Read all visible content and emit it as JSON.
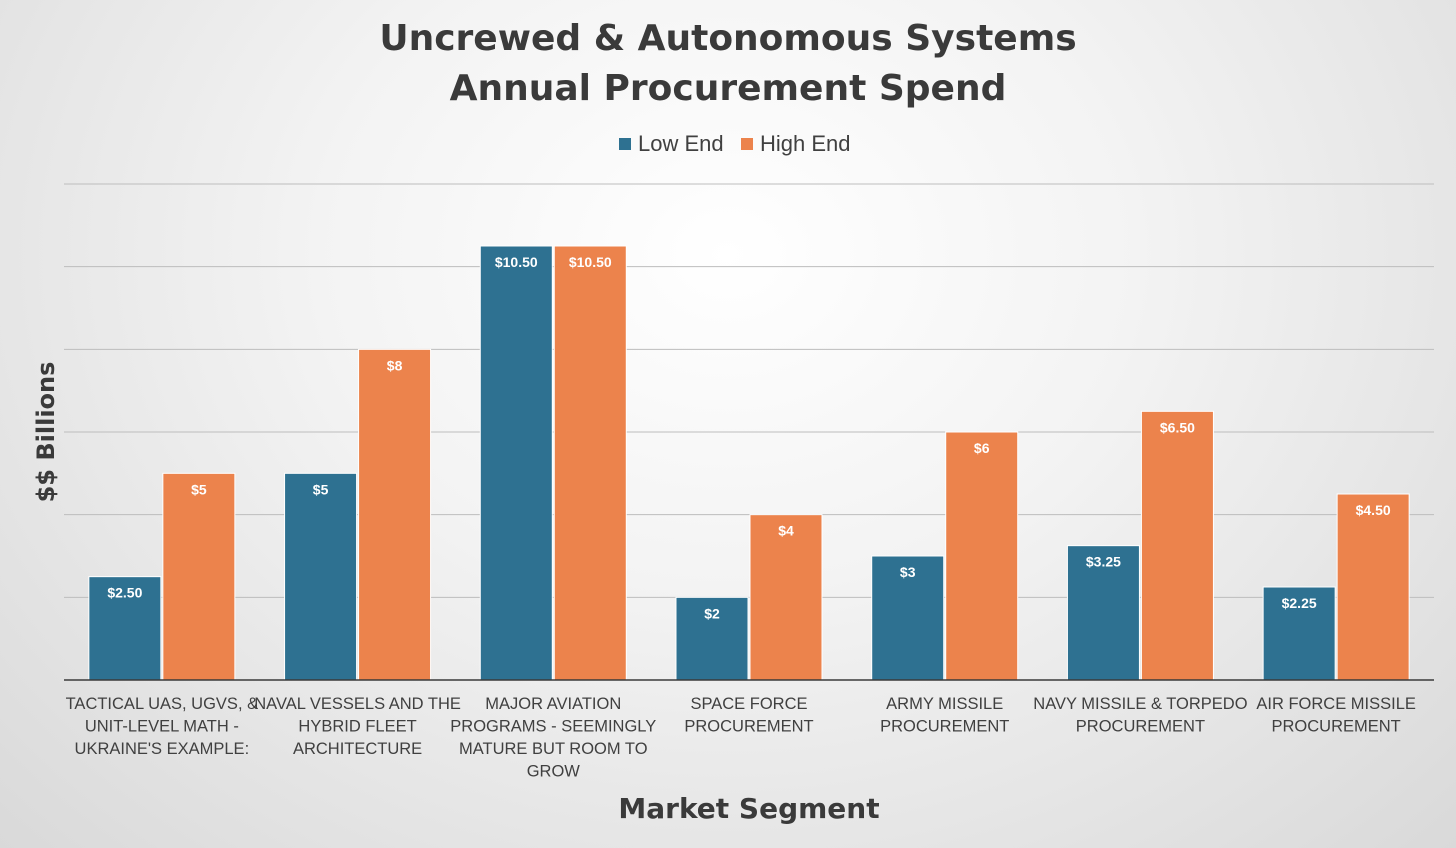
{
  "chart_data": {
    "type": "bar",
    "title": [
      "Uncrewed & Autonomous Systems",
      "Annual Procurement Spend"
    ],
    "xlabel": "Market Segment",
    "ylabel": "$$ Billions",
    "ylim": [
      0,
      12
    ],
    "grid": true,
    "legend_position": "top",
    "categories": [
      "TACTICAL UAS, UGVS, & UNIT-LEVEL MATH - UKRAINE'S EXAMPLE:",
      "NAVAL VESSELS AND THE HYBRID FLEET ARCHITECTURE",
      "MAJOR AVIATION PROGRAMS - SEEMINGLY MATURE BUT ROOM TO GROW",
      "SPACE FORCE PROCUREMENT",
      "ARMY MISSILE PROCUREMENT",
      "NAVY MISSILE & TORPEDO PROCUREMENT",
      "AIR FORCE MISSILE PROCUREMENT"
    ],
    "category_lines": [
      [
        "TACTICAL UAS, UGVS, &",
        "UNIT-LEVEL MATH -",
        "UKRAINE'S EXAMPLE:"
      ],
      [
        "NAVAL VESSELS AND THE",
        "HYBRID FLEET",
        "ARCHITECTURE"
      ],
      [
        "MAJOR AVIATION",
        "PROGRAMS - SEEMINGLY",
        "MATURE BUT ROOM TO",
        "GROW"
      ],
      [
        "SPACE FORCE",
        "PROCUREMENT"
      ],
      [
        "ARMY MISSILE",
        "PROCUREMENT"
      ],
      [
        "NAVY MISSILE & TORPEDO",
        "PROCUREMENT"
      ],
      [
        "AIR FORCE MISSILE",
        "PROCUREMENT"
      ]
    ],
    "series": [
      {
        "name": "Low End",
        "color": "#2e7191",
        "values": [
          2.5,
          5,
          10.5,
          2,
          3,
          3.25,
          2.25
        ],
        "labels": [
          "$2.50",
          "$5",
          "$10.50",
          "$2",
          "$3",
          "$3.25",
          "$2.25"
        ]
      },
      {
        "name": "High End",
        "color": "#ec834c",
        "values": [
          5,
          8,
          10.5,
          4,
          6,
          6.5,
          4.5
        ],
        "labels": [
          "$5",
          "$8",
          "$10.50",
          "$4",
          "$6",
          "$6.50",
          "$4.50"
        ]
      }
    ]
  }
}
